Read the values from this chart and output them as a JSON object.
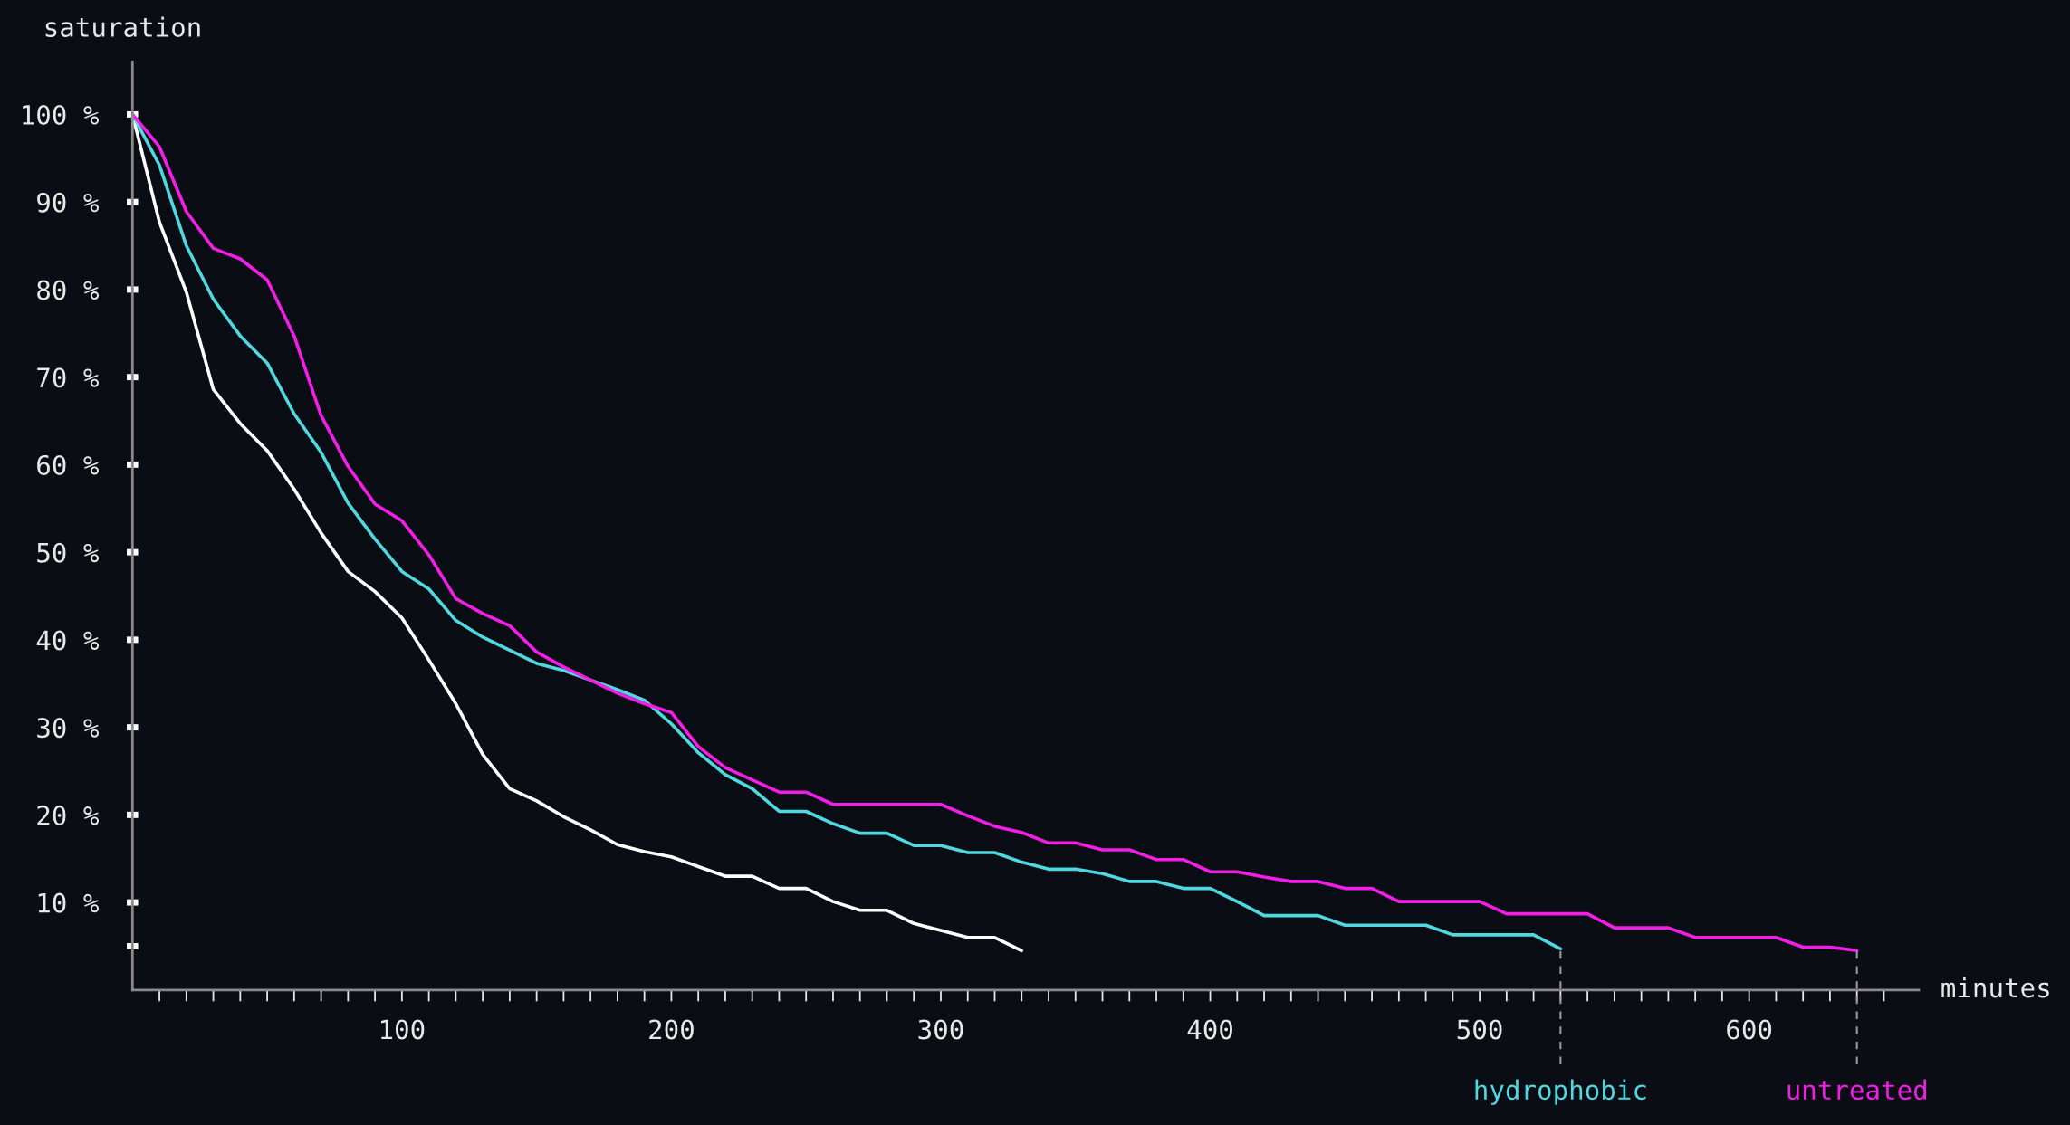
{
  "chart_data": {
    "type": "line",
    "xlabel": "minutes",
    "ylabel": "saturation",
    "xlim": [
      0,
      663
    ],
    "ylim": [
      0,
      106
    ],
    "xticks": [
      {
        "value": 10,
        "label": null
      },
      {
        "value": 20,
        "label": null
      },
      {
        "value": 30,
        "label": null
      },
      {
        "value": 40,
        "label": null
      },
      {
        "value": 50,
        "label": null
      },
      {
        "value": 60,
        "label": null
      },
      {
        "value": 70,
        "label": null
      },
      {
        "value": 80,
        "label": null
      },
      {
        "value": 90,
        "label": null
      },
      100,
      {
        "value": 110,
        "label": null
      },
      {
        "value": 120,
        "label": null
      },
      {
        "value": 130,
        "label": null
      },
      {
        "value": 140,
        "label": null
      },
      {
        "value": 150,
        "label": null
      },
      {
        "value": 160,
        "label": null
      },
      {
        "value": 170,
        "label": null
      },
      {
        "value": 180,
        "label": null
      },
      {
        "value": 190,
        "label": null
      },
      200,
      {
        "value": 210,
        "label": null
      },
      {
        "value": 220,
        "label": null
      },
      {
        "value": 230,
        "label": null
      },
      {
        "value": 240,
        "label": null
      },
      {
        "value": 250,
        "label": null
      },
      {
        "value": 260,
        "label": null
      },
      {
        "value": 270,
        "label": null
      },
      {
        "value": 280,
        "label": null
      },
      {
        "value": 290,
        "label": null
      },
      300,
      {
        "value": 310,
        "label": null
      },
      {
        "value": 320,
        "label": null
      },
      {
        "value": 330,
        "label": null
      },
      {
        "value": 340,
        "label": null
      },
      {
        "value": 350,
        "label": null
      },
      {
        "value": 360,
        "label": null
      },
      {
        "value": 370,
        "label": null
      },
      {
        "value": 380,
        "label": null
      },
      {
        "value": 390,
        "label": null
      },
      400,
      {
        "value": 410,
        "label": null
      },
      {
        "value": 420,
        "label": null
      },
      {
        "value": 430,
        "label": null
      },
      {
        "value": 440,
        "label": null
      },
      {
        "value": 450,
        "label": null
      },
      {
        "value": 460,
        "label": null
      },
      {
        "value": 470,
        "label": null
      },
      {
        "value": 480,
        "label": null
      },
      {
        "value": 490,
        "label": null
      },
      500,
      {
        "value": 510,
        "label": null
      },
      {
        "value": 520,
        "label": null
      },
      {
        "value": 530,
        "label": null
      },
      {
        "value": 540,
        "label": null
      },
      {
        "value": 550,
        "label": null
      },
      {
        "value": 560,
        "label": null
      },
      {
        "value": 570,
        "label": null
      },
      {
        "value": 580,
        "label": null
      },
      {
        "value": 590,
        "label": null
      },
      600,
      {
        "value": 610,
        "label": null
      },
      {
        "value": 620,
        "label": null
      },
      {
        "value": 630,
        "label": null
      },
      {
        "value": 640,
        "label": null
      },
      {
        "value": 650,
        "label": null
      }
    ],
    "yticks": [
      {
        "value": 5,
        "label": null
      },
      {
        "value": 10,
        "label": "10 %"
      },
      {
        "value": 20,
        "label": "20 %"
      },
      {
        "value": 30,
        "label": "30 %"
      },
      {
        "value": 40,
        "label": "40 %"
      },
      {
        "value": 50,
        "label": "50 %"
      },
      {
        "value": 60,
        "label": "60 %"
      },
      {
        "value": 70,
        "label": "70 %"
      },
      {
        "value": 80,
        "label": "80 %"
      },
      {
        "value": 90,
        "label": "90 %"
      },
      {
        "value": 100,
        "label": "100 %"
      }
    ],
    "grid": false,
    "legend": false,
    "marker": "none",
    "line_style": "solid",
    "series": [
      {
        "color": "#ffffff",
        "x": [
          0,
          10,
          20,
          30,
          40,
          50,
          60,
          70,
          80,
          90,
          100,
          110,
          120,
          130,
          140,
          150,
          160,
          170,
          180,
          190,
          200,
          210,
          220,
          230,
          240,
          250,
          260,
          270,
          280,
          290,
          300,
          310,
          320,
          330
        ],
        "values": [
          100,
          87.7,
          79.7,
          68.6,
          64.7,
          61.6,
          57.2,
          52.2,
          47.8,
          45.5,
          42.5,
          37.7,
          32.7,
          26.9,
          23.0,
          21.6,
          19.8,
          18.3,
          16.6,
          15.8,
          15.2,
          14.1,
          13.0,
          13.0,
          11.6,
          11.6,
          10.1,
          9.1,
          9.1,
          7.6,
          6.8,
          6.0,
          6.0,
          4.5
        ]
      },
      {
        "name": "hydrophobic",
        "color": "#4fd8df",
        "x": [
          0,
          10,
          20,
          30,
          40,
          50,
          60,
          70,
          80,
          90,
          100,
          110,
          120,
          130,
          140,
          150,
          160,
          170,
          180,
          190,
          200,
          210,
          220,
          230,
          240,
          250,
          260,
          270,
          280,
          290,
          300,
          310,
          320,
          330,
          340,
          350,
          360,
          370,
          380,
          390,
          400,
          410,
          420,
          430,
          440,
          450,
          460,
          470,
          480,
          490,
          500,
          510,
          520,
          530
        ],
        "values": [
          100,
          94.2,
          85.0,
          78.9,
          74.7,
          71.6,
          65.8,
          61.4,
          55.6,
          51.5,
          47.8,
          45.8,
          42.2,
          40.3,
          38.8,
          37.3,
          36.5,
          35.4,
          34.3,
          33.1,
          30.4,
          27.1,
          24.6,
          23.0,
          20.4,
          20.4,
          19.0,
          17.9,
          17.9,
          16.5,
          16.5,
          15.7,
          15.7,
          14.6,
          13.8,
          13.8,
          13.3,
          12.4,
          12.4,
          11.6,
          11.6,
          10.1,
          8.5,
          8.5,
          8.5,
          7.4,
          7.4,
          7.4,
          7.4,
          6.3,
          6.3,
          6.3,
          6.3,
          4.7
        ]
      },
      {
        "name": "untreated",
        "color": "#f21ee6",
        "x": [
          0,
          10,
          20,
          30,
          40,
          50,
          60,
          70,
          80,
          90,
          100,
          110,
          120,
          130,
          140,
          150,
          160,
          170,
          180,
          190,
          200,
          210,
          220,
          230,
          240,
          250,
          260,
          270,
          280,
          290,
          300,
          310,
          320,
          330,
          340,
          350,
          360,
          370,
          380,
          390,
          400,
          410,
          420,
          430,
          440,
          450,
          460,
          470,
          480,
          490,
          500,
          510,
          520,
          530,
          540,
          550,
          560,
          570,
          580,
          590,
          600,
          610,
          620,
          630,
          640
        ],
        "values": [
          100,
          96.3,
          88.9,
          84.7,
          83.5,
          81.1,
          74.7,
          65.6,
          59.8,
          55.5,
          53.6,
          49.7,
          44.7,
          43.0,
          41.6,
          38.6,
          36.9,
          35.4,
          33.9,
          32.7,
          31.7,
          27.8,
          25.4,
          24.0,
          22.6,
          22.6,
          21.2,
          21.2,
          21.2,
          21.2,
          21.2,
          19.9,
          18.7,
          18.0,
          16.8,
          16.8,
          16.0,
          16.0,
          14.9,
          14.9,
          13.5,
          13.5,
          12.9,
          12.4,
          12.4,
          11.6,
          11.6,
          10.1,
          10.1,
          10.1,
          10.1,
          8.7,
          8.7,
          8.7,
          8.7,
          7.1,
          7.1,
          7.1,
          6.0,
          6.0,
          6.0,
          6.0,
          4.9,
          4.9,
          4.5
        ]
      }
    ]
  }
}
